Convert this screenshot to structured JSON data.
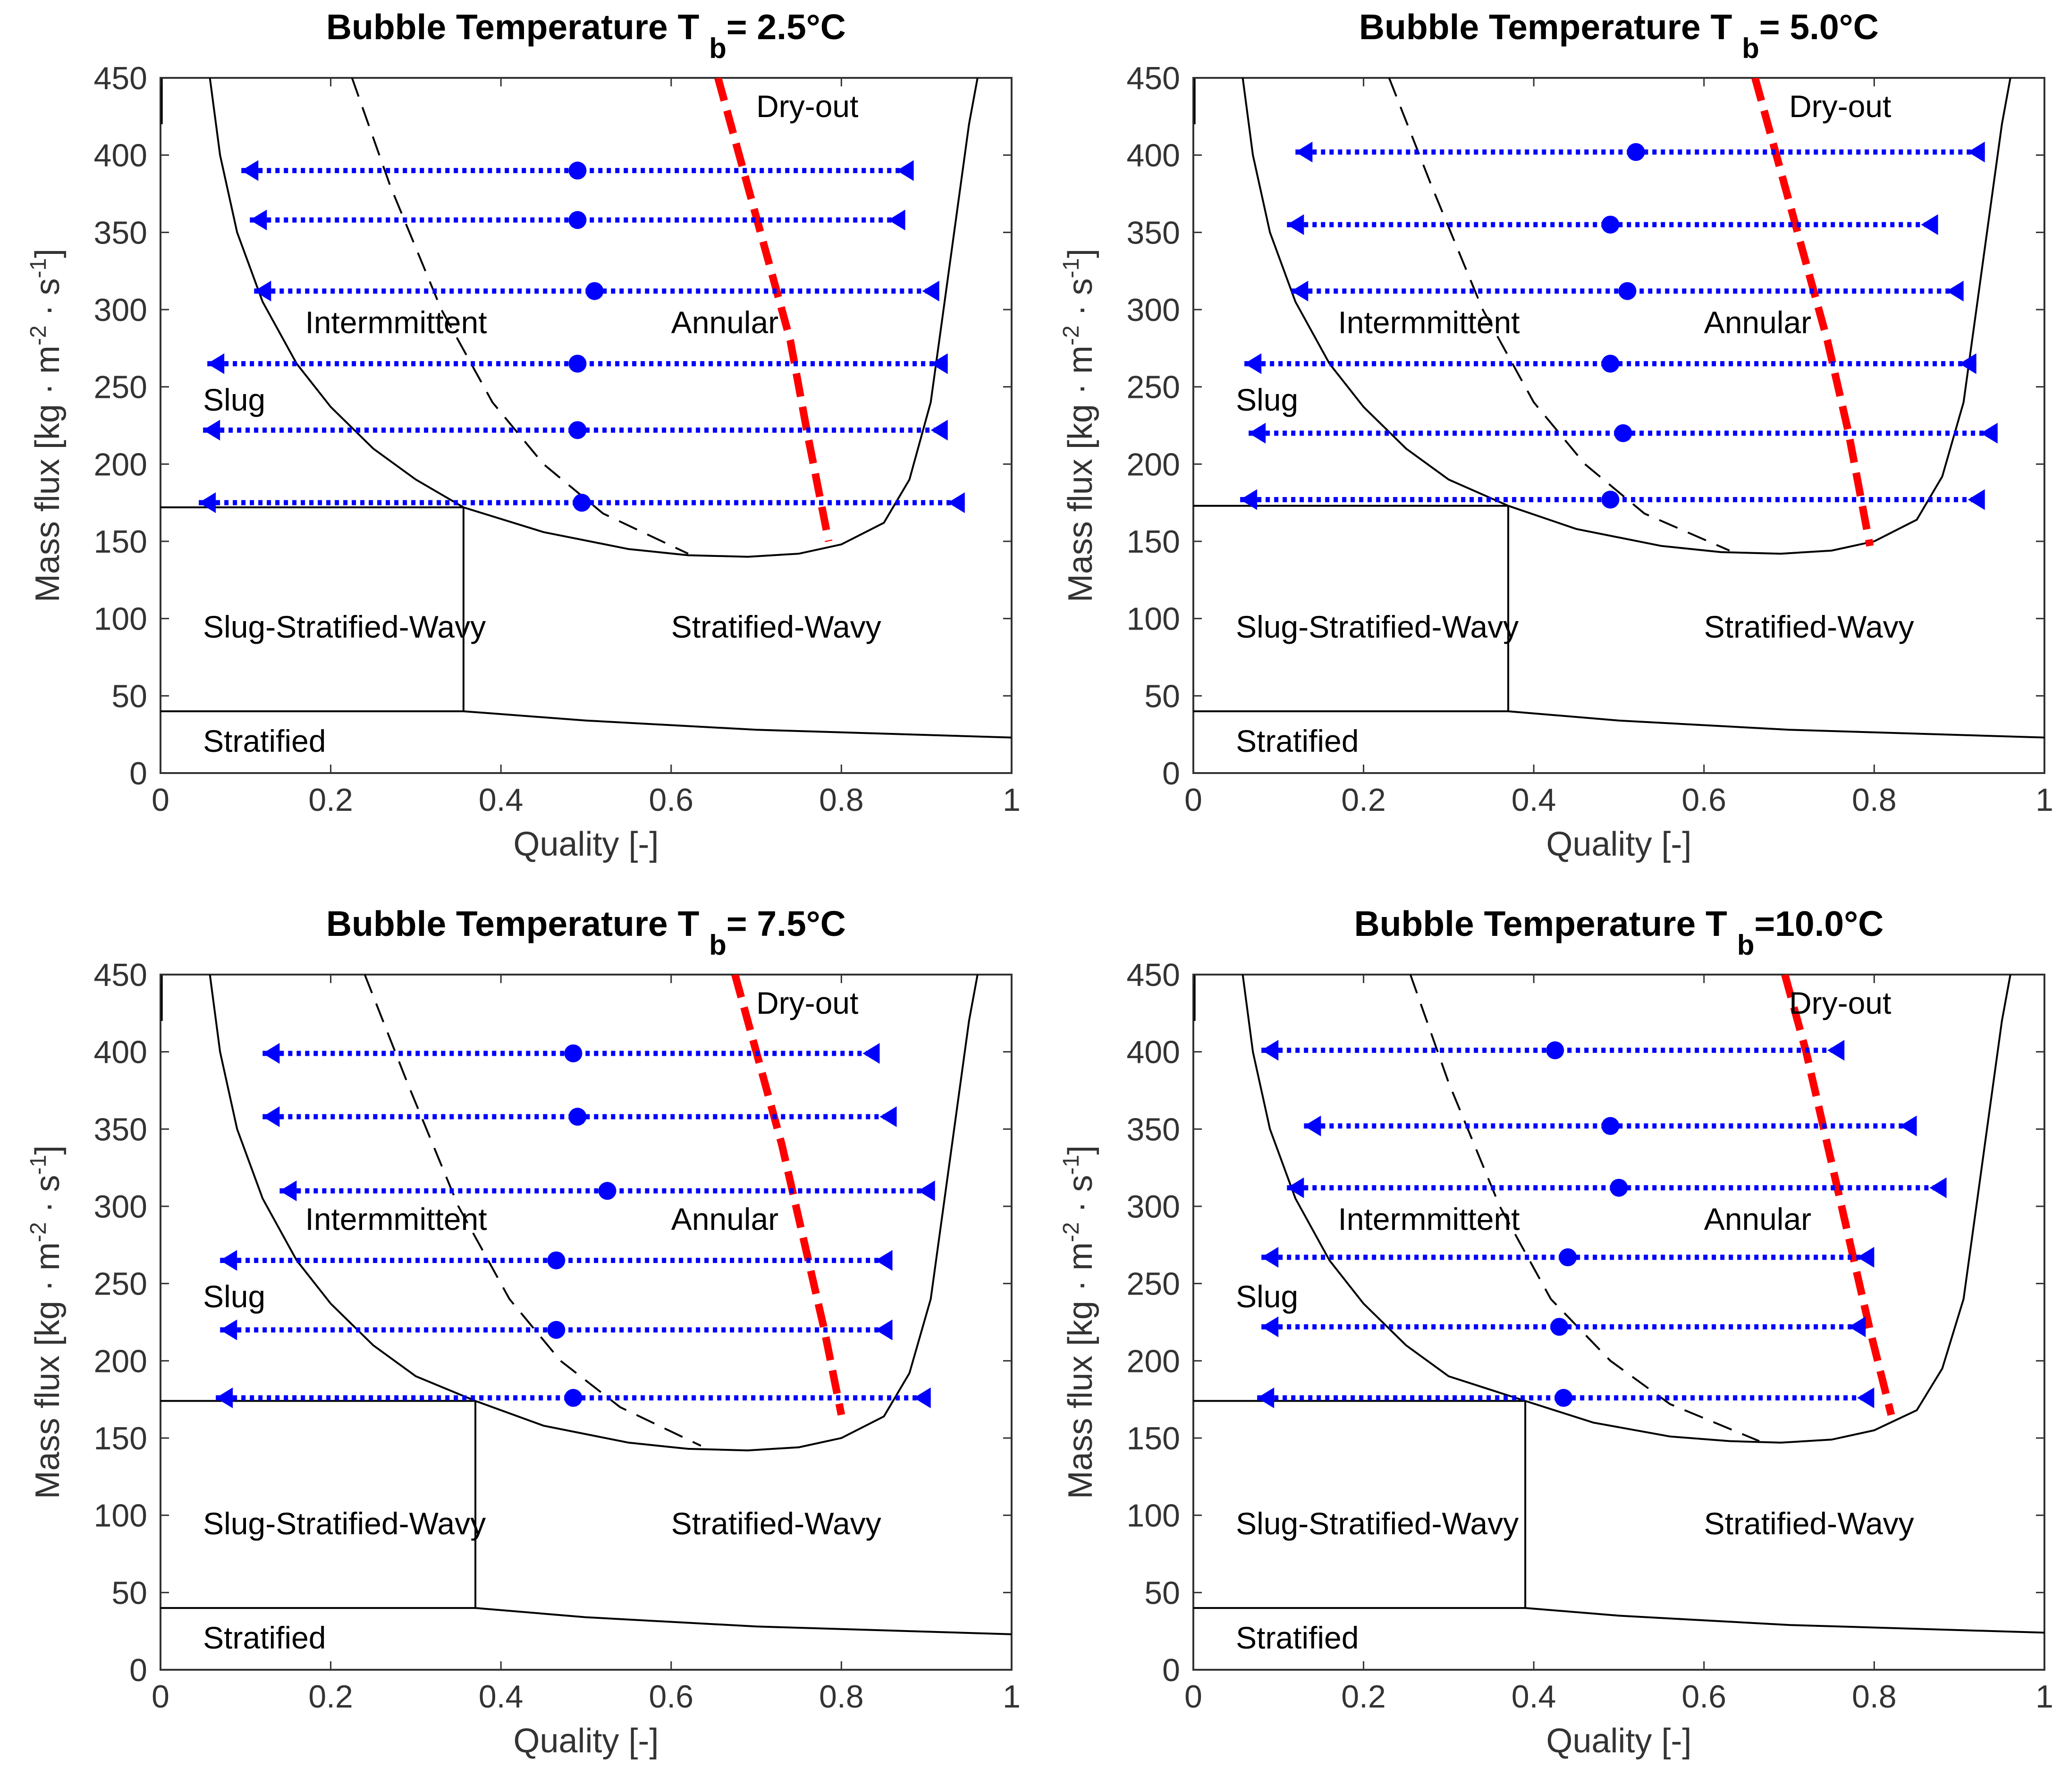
{
  "chart_data": [
    {
      "type": "line",
      "title": "Bubble Temperature T",
      "title_subscript": "b",
      "title_suffix": "= 2.5°C",
      "xlabel": "Quality [-]",
      "ylabel_parts": [
        "Mass flux [kg · m",
        "-2",
        " · s",
        "-1",
        "]"
      ],
      "xlim": [
        0,
        1
      ],
      "ylim": [
        0,
        450
      ],
      "xticks": [
        0,
        0.2,
        0.4,
        0.6,
        0.8,
        1
      ],
      "xtick_labels": [
        "0",
        "0.2",
        "0.4",
        "0.6",
        "0.8",
        "1"
      ],
      "yticks": [
        0,
        50,
        100,
        150,
        200,
        250,
        300,
        350,
        400,
        450
      ],
      "ytick_labels": [
        "0",
        "50",
        "100",
        "150",
        "200",
        "250",
        "300",
        "350",
        "400",
        "450"
      ],
      "region_labels": [
        {
          "text": "Dry-out",
          "x": 0.7,
          "y": 430
        },
        {
          "text": "Intermmittent",
          "x": 0.17,
          "y": 290
        },
        {
          "text": "Annular",
          "x": 0.6,
          "y": 290
        },
        {
          "text": "Slug",
          "x": 0.05,
          "y": 240
        },
        {
          "text": "Slug-Stratified-Wavy",
          "x": 0.05,
          "y": 93
        },
        {
          "text": "Stratified-Wavy",
          "x": 0.6,
          "y": 93
        },
        {
          "text": "Stratified",
          "x": 0.05,
          "y": 19
        }
      ],
      "boundary_annular_left": {
        "x": [
          0.058,
          0.07,
          0.09,
          0.12,
          0.16,
          0.2,
          0.25,
          0.3,
          0.356
        ],
        "y": [
          450,
          400,
          350,
          305,
          265,
          237,
          210,
          190,
          172
        ]
      },
      "boundary_wavy": {
        "x": [
          0.356,
          0.45,
          0.55,
          0.62,
          0.69,
          0.75,
          0.8,
          0.85,
          0.88,
          0.905,
          0.92,
          0.935,
          0.95,
          0.96
        ],
        "y": [
          172,
          156,
          145,
          141,
          140,
          142,
          148,
          162,
          190,
          240,
          300,
          360,
          420,
          450
        ]
      },
      "boundary_wavy_left_start": {
        "x": 0.0,
        "y": 450
      },
      "boundary_slug_top": {
        "x": [
          0,
          0.356
        ],
        "y": [
          172,
          172
        ]
      },
      "boundary_vertical": {
        "x": [
          0.356,
          0.356
        ],
        "y": [
          40,
          172
        ]
      },
      "boundary_stratified": {
        "x": [
          0,
          0.356,
          0.5,
          0.7,
          1.0
        ],
        "y": [
          40,
          40,
          34,
          28,
          23
        ]
      },
      "transition_dashed": {
        "x": [
          0.225,
          0.27,
          0.33,
          0.39,
          0.45,
          0.52,
          0.62
        ],
        "y": [
          450,
          380,
          300,
          240,
          200,
          168,
          142
        ]
      },
      "dryout_red": {
        "x": [
          0.655,
          0.68,
          0.71,
          0.74,
          0.76,
          0.785
        ],
        "y": [
          450,
          400,
          340,
          280,
          220,
          150
        ]
      },
      "test_lines": [
        {
          "G": 390,
          "x_in": 0.095,
          "x_mid": 0.49,
          "x_out": 0.885
        },
        {
          "G": 358,
          "x_in": 0.105,
          "x_mid": 0.49,
          "x_out": 0.875
        },
        {
          "G": 312,
          "x_in": 0.11,
          "x_mid": 0.51,
          "x_out": 0.915
        },
        {
          "G": 265,
          "x_in": 0.055,
          "x_mid": 0.49,
          "x_out": 0.925
        },
        {
          "G": 222,
          "x_in": 0.05,
          "x_mid": 0.49,
          "x_out": 0.925
        },
        {
          "G": 175,
          "x_in": 0.045,
          "x_mid": 0.495,
          "x_out": 0.945
        }
      ]
    },
    {
      "type": "line",
      "title": "Bubble Temperature T",
      "title_subscript": "b",
      "title_suffix": "= 5.0°C",
      "xlabel": "Quality [-]",
      "ylabel_parts": [
        "Mass flux [kg · m",
        "-2",
        " · s",
        "-1",
        "]"
      ],
      "xlim": [
        0,
        1
      ],
      "ylim": [
        0,
        450
      ],
      "xticks": [
        0,
        0.2,
        0.4,
        0.6,
        0.8,
        1
      ],
      "xtick_labels": [
        "0",
        "0.2",
        "0.4",
        "0.6",
        "0.8",
        "1"
      ],
      "yticks": [
        0,
        50,
        100,
        150,
        200,
        250,
        300,
        350,
        400,
        450
      ],
      "ytick_labels": [
        "0",
        "50",
        "100",
        "150",
        "200",
        "250",
        "300",
        "350",
        "400",
        "450"
      ],
      "region_labels": [
        {
          "text": "Dry-out",
          "x": 0.7,
          "y": 430
        },
        {
          "text": "Intermmittent",
          "x": 0.17,
          "y": 290
        },
        {
          "text": "Annular",
          "x": 0.6,
          "y": 290
        },
        {
          "text": "Slug",
          "x": 0.05,
          "y": 240
        },
        {
          "text": "Slug-Stratified-Wavy",
          "x": 0.05,
          "y": 93
        },
        {
          "text": "Stratified-Wavy",
          "x": 0.6,
          "y": 93
        },
        {
          "text": "Stratified",
          "x": 0.05,
          "y": 19
        }
      ],
      "boundary_annular_left": {
        "x": [
          0.058,
          0.07,
          0.09,
          0.12,
          0.16,
          0.2,
          0.25,
          0.3,
          0.37
        ],
        "y": [
          450,
          400,
          350,
          305,
          265,
          237,
          210,
          190,
          173
        ]
      },
      "boundary_wavy": {
        "x": [
          0.37,
          0.45,
          0.55,
          0.62,
          0.69,
          0.75,
          0.8,
          0.85,
          0.88,
          0.905,
          0.92,
          0.935,
          0.95,
          0.96
        ],
        "y": [
          173,
          158,
          147,
          143,
          142,
          144,
          150,
          164,
          192,
          240,
          300,
          360,
          420,
          450
        ]
      },
      "boundary_wavy_left_start": {
        "x": 0.0,
        "y": 450
      },
      "boundary_slug_top": {
        "x": [
          0,
          0.37
        ],
        "y": [
          173,
          173
        ]
      },
      "boundary_vertical": {
        "x": [
          0.37,
          0.37
        ],
        "y": [
          40,
          173
        ]
      },
      "boundary_stratified": {
        "x": [
          0,
          0.37,
          0.5,
          0.7,
          1.0
        ],
        "y": [
          40,
          40,
          34,
          28,
          23
        ]
      },
      "transition_dashed": {
        "x": [
          0.23,
          0.28,
          0.34,
          0.4,
          0.46,
          0.53,
          0.63
        ],
        "y": [
          450,
          380,
          300,
          240,
          200,
          168,
          144
        ]
      },
      "dryout_red": {
        "x": [
          0.66,
          0.685,
          0.715,
          0.745,
          0.77,
          0.795
        ],
        "y": [
          450,
          400,
          340,
          280,
          220,
          147
        ]
      },
      "test_lines": [
        {
          "G": 402,
          "x_in": 0.12,
          "x_mid": 0.52,
          "x_out": 0.93
        },
        {
          "G": 355,
          "x_in": 0.11,
          "x_mid": 0.49,
          "x_out": 0.875
        },
        {
          "G": 312,
          "x_in": 0.115,
          "x_mid": 0.51,
          "x_out": 0.905
        },
        {
          "G": 265,
          "x_in": 0.06,
          "x_mid": 0.49,
          "x_out": 0.92
        },
        {
          "G": 220,
          "x_in": 0.065,
          "x_mid": 0.505,
          "x_out": 0.945
        },
        {
          "G": 177,
          "x_in": 0.055,
          "x_mid": 0.49,
          "x_out": 0.93
        }
      ]
    },
    {
      "type": "line",
      "title": "Bubble Temperature T",
      "title_subscript": "b",
      "title_suffix": "= 7.5°C",
      "xlabel": "Quality [-]",
      "ylabel_parts": [
        "Mass flux [kg · m",
        "-2",
        " · s",
        "-1",
        "]"
      ],
      "xlim": [
        0,
        1
      ],
      "ylim": [
        0,
        450
      ],
      "xticks": [
        0,
        0.2,
        0.4,
        0.6,
        0.8,
        1
      ],
      "xtick_labels": [
        "0",
        "0.2",
        "0.4",
        "0.6",
        "0.8",
        "1"
      ],
      "yticks": [
        0,
        50,
        100,
        150,
        200,
        250,
        300,
        350,
        400,
        450
      ],
      "ytick_labels": [
        "0",
        "50",
        "100",
        "150",
        "200",
        "250",
        "300",
        "350",
        "400",
        "450"
      ],
      "region_labels": [
        {
          "text": "Dry-out",
          "x": 0.7,
          "y": 430
        },
        {
          "text": "Intermmittent",
          "x": 0.17,
          "y": 290
        },
        {
          "text": "Annular",
          "x": 0.6,
          "y": 290
        },
        {
          "text": "Slug",
          "x": 0.05,
          "y": 240
        },
        {
          "text": "Slug-Stratified-Wavy",
          "x": 0.05,
          "y": 93
        },
        {
          "text": "Stratified-Wavy",
          "x": 0.6,
          "y": 93
        },
        {
          "text": "Stratified",
          "x": 0.05,
          "y": 19
        }
      ],
      "boundary_annular_left": {
        "x": [
          0.058,
          0.07,
          0.09,
          0.12,
          0.16,
          0.2,
          0.25,
          0.3,
          0.37
        ],
        "y": [
          450,
          400,
          350,
          305,
          265,
          237,
          210,
          190,
          174
        ]
      },
      "boundary_wavy": {
        "x": [
          0.37,
          0.45,
          0.55,
          0.62,
          0.69,
          0.75,
          0.8,
          0.85,
          0.88,
          0.905,
          0.92,
          0.935,
          0.95,
          0.96
        ],
        "y": [
          174,
          158,
          147,
          143,
          142,
          144,
          150,
          164,
          192,
          240,
          300,
          360,
          420,
          450
        ]
      },
      "boundary_wavy_left_start": {
        "x": 0.0,
        "y": 450
      },
      "boundary_slug_top": {
        "x": [
          0,
          0.37
        ],
        "y": [
          174,
          174
        ]
      },
      "boundary_vertical": {
        "x": [
          0.37,
          0.37
        ],
        "y": [
          40,
          174
        ]
      },
      "boundary_stratified": {
        "x": [
          0,
          0.37,
          0.5,
          0.7,
          1.0
        ],
        "y": [
          40,
          40,
          34,
          28,
          23
        ]
      },
      "transition_dashed": {
        "x": [
          0.24,
          0.29,
          0.35,
          0.41,
          0.47,
          0.54,
          0.635
        ],
        "y": [
          450,
          380,
          300,
          240,
          200,
          170,
          145
        ]
      },
      "dryout_red": {
        "x": [
          0.675,
          0.7,
          0.73,
          0.755,
          0.78,
          0.8
        ],
        "y": [
          450,
          400,
          340,
          280,
          220,
          165
        ]
      },
      "test_lines": [
        {
          "G": 399,
          "x_in": 0.12,
          "x_mid": 0.485,
          "x_out": 0.845
        },
        {
          "G": 358,
          "x_in": 0.12,
          "x_mid": 0.49,
          "x_out": 0.865
        },
        {
          "G": 310,
          "x_in": 0.14,
          "x_mid": 0.525,
          "x_out": 0.91
        },
        {
          "G": 265,
          "x_in": 0.07,
          "x_mid": 0.465,
          "x_out": 0.86
        },
        {
          "G": 220,
          "x_in": 0.07,
          "x_mid": 0.465,
          "x_out": 0.86
        },
        {
          "G": 176,
          "x_in": 0.065,
          "x_mid": 0.485,
          "x_out": 0.905
        }
      ]
    },
    {
      "type": "line",
      "title": "Bubble Temperature T",
      "title_subscript": "b",
      "title_suffix": "=10.0°C",
      "xlabel": "Quality [-]",
      "ylabel_parts": [
        "Mass flux [kg · m",
        "-2",
        " · s",
        "-1",
        "]"
      ],
      "xlim": [
        0,
        1
      ],
      "ylim": [
        0,
        450
      ],
      "xticks": [
        0,
        0.2,
        0.4,
        0.6,
        0.8,
        1
      ],
      "xtick_labels": [
        "0",
        "0.2",
        "0.4",
        "0.6",
        "0.8",
        "1"
      ],
      "yticks": [
        0,
        50,
        100,
        150,
        200,
        250,
        300,
        350,
        400,
        450
      ],
      "ytick_labels": [
        "0",
        "50",
        "100",
        "150",
        "200",
        "250",
        "300",
        "350",
        "400",
        "450"
      ],
      "region_labels": [
        {
          "text": "Dry-out",
          "x": 0.7,
          "y": 430
        },
        {
          "text": "Intermmittent",
          "x": 0.17,
          "y": 290
        },
        {
          "text": "Annular",
          "x": 0.6,
          "y": 290
        },
        {
          "text": "Slug",
          "x": 0.05,
          "y": 240
        },
        {
          "text": "Slug-Stratified-Wavy",
          "x": 0.05,
          "y": 93
        },
        {
          "text": "Stratified-Wavy",
          "x": 0.6,
          "y": 93
        },
        {
          "text": "Stratified",
          "x": 0.05,
          "y": 19
        }
      ],
      "boundary_annular_left": {
        "x": [
          0.058,
          0.07,
          0.09,
          0.12,
          0.16,
          0.2,
          0.25,
          0.3,
          0.39
        ],
        "y": [
          450,
          400,
          350,
          305,
          265,
          237,
          210,
          190,
          174
        ]
      },
      "boundary_wavy": {
        "x": [
          0.39,
          0.47,
          0.56,
          0.63,
          0.69,
          0.75,
          0.8,
          0.85,
          0.88,
          0.905,
          0.92,
          0.935,
          0.95,
          0.96
        ],
        "y": [
          174,
          160,
          151,
          148,
          147,
          149,
          155,
          168,
          195,
          240,
          300,
          360,
          420,
          450
        ]
      },
      "boundary_wavy_left_start": {
        "x": 0.0,
        "y": 450
      },
      "boundary_slug_top": {
        "x": [
          0,
          0.39
        ],
        "y": [
          174,
          174
        ]
      },
      "boundary_vertical": {
        "x": [
          0.39,
          0.39
        ],
        "y": [
          40,
          174
        ]
      },
      "boundary_stratified": {
        "x": [
          0,
          0.39,
          0.5,
          0.7,
          1.0
        ],
        "y": [
          40,
          40,
          35,
          29,
          24
        ]
      },
      "transition_dashed": {
        "x": [
          0.255,
          0.3,
          0.36,
          0.42,
          0.49,
          0.56,
          0.665
        ],
        "y": [
          450,
          380,
          300,
          240,
          200,
          172,
          148
        ]
      },
      "dryout_red": {
        "x": [
          0.695,
          0.72,
          0.745,
          0.77,
          0.795,
          0.82
        ],
        "y": [
          450,
          400,
          340,
          280,
          220,
          165
        ]
      },
      "test_lines": [
        {
          "G": 401,
          "x_in": 0.08,
          "x_mid": 0.425,
          "x_out": 0.765
        },
        {
          "G": 352,
          "x_in": 0.13,
          "x_mid": 0.49,
          "x_out": 0.85
        },
        {
          "G": 312,
          "x_in": 0.11,
          "x_mid": 0.5,
          "x_out": 0.885
        },
        {
          "G": 267,
          "x_in": 0.08,
          "x_mid": 0.44,
          "x_out": 0.8
        },
        {
          "G": 222,
          "x_in": 0.08,
          "x_mid": 0.43,
          "x_out": 0.79
        },
        {
          "G": 176,
          "x_in": 0.075,
          "x_mid": 0.435,
          "x_out": 0.8
        }
      ]
    }
  ],
  "colors": {
    "boundary": "#000000",
    "test_lines": "#0000ff",
    "dryout": "#ff0000",
    "axis": "#333333"
  }
}
